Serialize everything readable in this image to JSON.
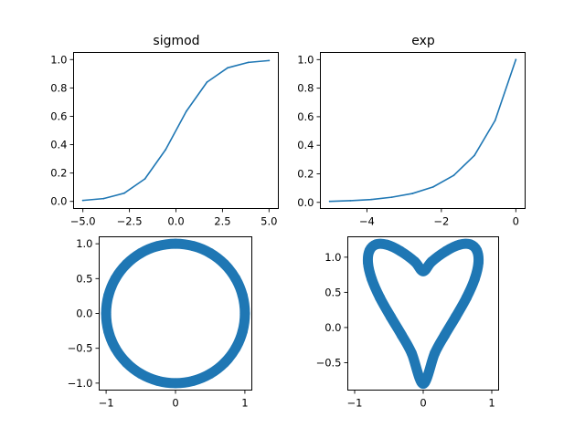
{
  "chart_data": [
    {
      "type": "line",
      "title": "sigmod",
      "color": "#1f77b4",
      "x": [
        -5.0,
        -3.889,
        -2.778,
        -1.667,
        -0.556,
        0.556,
        1.667,
        2.778,
        3.889,
        5.0
      ],
      "y": [
        0.007,
        0.02,
        0.058,
        0.159,
        0.365,
        0.635,
        0.841,
        0.942,
        0.98,
        0.993
      ],
      "xlim": [
        -5.5,
        5.5
      ],
      "ylim": [
        -0.05,
        1.05
      ],
      "xticks": [
        -5.0,
        -2.5,
        0.0,
        2.5,
        5.0
      ],
      "xtick_labels": [
        "−5.0",
        "−2.5",
        "0.0",
        "2.5",
        "5.0"
      ],
      "yticks": [
        0.0,
        0.2,
        0.4,
        0.6,
        0.8,
        1.0
      ],
      "ytick_labels": [
        "0.0",
        "0.2",
        "0.4",
        "0.6",
        "0.8",
        "1.0"
      ]
    },
    {
      "type": "line",
      "title": "exp",
      "color": "#1f77b4",
      "x": [
        -5.0,
        -4.444,
        -3.889,
        -3.333,
        -2.778,
        -2.222,
        -1.667,
        -1.111,
        -0.556,
        0.0
      ],
      "y": [
        0.007,
        0.012,
        0.02,
        0.036,
        0.062,
        0.108,
        0.189,
        0.329,
        0.574,
        1.0
      ],
      "xlim": [
        -5.25,
        0.25
      ],
      "ylim": [
        -0.043,
        1.05
      ],
      "xticks": [
        -4,
        -2,
        0
      ],
      "xtick_labels": [
        "−4",
        "−2",
        "0"
      ],
      "yticks": [
        0.0,
        0.2,
        0.4,
        0.6,
        0.8,
        1.0
      ],
      "ytick_labels": [
        "0.0",
        "0.2",
        "0.4",
        "0.6",
        "0.8",
        "1.0"
      ]
    },
    {
      "type": "scatter",
      "title": "",
      "color": "#1f77b4",
      "curve": "circle",
      "x": [
        1.0,
        0.966,
        0.866,
        0.707,
        0.5,
        0.259,
        0.0,
        -0.259,
        -0.5,
        -0.707,
        -0.866,
        -0.966,
        -1.0,
        -0.966,
        -0.866,
        -0.707,
        -0.5,
        -0.259,
        0.0,
        0.259,
        0.5,
        0.707,
        0.866,
        0.966
      ],
      "y": [
        0.0,
        0.259,
        0.5,
        0.707,
        0.866,
        0.966,
        1.0,
        0.966,
        0.866,
        0.707,
        0.5,
        0.259,
        0.0,
        -0.259,
        -0.5,
        -0.707,
        -0.866,
        -0.966,
        -1.0,
        -0.966,
        -0.866,
        -0.707,
        -0.5,
        -0.259
      ],
      "xlim": [
        -1.1,
        1.1
      ],
      "ylim": [
        -1.1,
        1.1
      ],
      "xticks": [
        -1,
        0,
        1
      ],
      "xtick_labels": [
        "−1",
        "0",
        "1"
      ],
      "yticks": [
        -1.0,
        -0.5,
        0.0,
        0.5,
        1.0
      ],
      "ytick_labels": [
        "−1.0",
        "−0.5",
        "0.0",
        "0.5",
        "1.0"
      ]
    },
    {
      "type": "scatter",
      "title": "",
      "color": "#1f77b4",
      "curve": "heart",
      "x": [
        0.0,
        0.123,
        0.333,
        0.529,
        0.684,
        0.782,
        0.806,
        0.751,
        0.631,
        0.474,
        0.314,
        0.168,
        0.0,
        -0.168,
        -0.314,
        -0.474,
        -0.631,
        -0.751,
        -0.806,
        -0.782,
        -0.684,
        -0.529,
        -0.333,
        -0.123
      ],
      "y": [
        0.8,
        0.937,
        1.087,
        1.177,
        1.183,
        1.096,
        0.924,
        0.69,
        0.423,
        0.152,
        -0.108,
        -0.367,
        -0.8,
        -0.367,
        -0.108,
        0.152,
        0.423,
        0.69,
        0.924,
        1.096,
        1.183,
        1.177,
        1.087,
        0.937
      ],
      "xlim": [
        -1.1,
        1.1
      ],
      "ylim": [
        -0.89,
        1.29
      ],
      "xticks": [
        -1,
        0,
        1
      ],
      "xtick_labels": [
        "−1",
        "0",
        "1"
      ],
      "yticks": [
        -0.5,
        0.0,
        0.5,
        1.0
      ],
      "ytick_labels": [
        "−0.5",
        "0.0",
        "0.5",
        "1.0"
      ]
    }
  ]
}
